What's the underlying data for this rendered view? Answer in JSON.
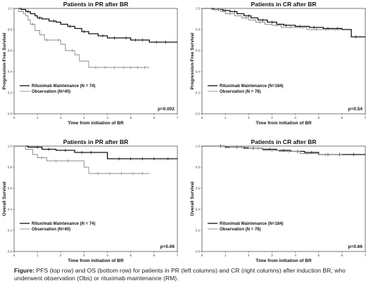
{
  "chart_data": [
    {
      "type": "line",
      "panel": "top-left",
      "title": "Patients in PR after BR",
      "xlabel": "Time from initiation of BR",
      "ylabel": "Progression-Free Survival",
      "xlim": [
        0,
        7
      ],
      "ylim": [
        0,
        1.0
      ],
      "xticks": [
        "0",
        "1",
        "2",
        "3",
        "4",
        "5",
        "6",
        "7"
      ],
      "yticks": [
        "0.0",
        "0.2",
        "0.4",
        "0.6",
        "0.8",
        "1.0"
      ],
      "grid": false,
      "legend_position": "bottom-left",
      "pvalue": "p=0.002",
      "series": [
        {
          "name": "Rituximab Maintenance (N = 74)",
          "color": "#111111",
          "steps": [
            [
              0,
              1.0
            ],
            [
              0.3,
              0.99
            ],
            [
              0.5,
              0.97
            ],
            [
              0.7,
              0.95
            ],
            [
              0.9,
              0.93
            ],
            [
              1.0,
              0.91
            ],
            [
              1.2,
              0.9
            ],
            [
              1.5,
              0.88
            ],
            [
              1.8,
              0.87
            ],
            [
              2.0,
              0.85
            ],
            [
              2.3,
              0.83
            ],
            [
              2.6,
              0.81
            ],
            [
              2.9,
              0.78
            ],
            [
              3.2,
              0.76
            ],
            [
              3.6,
              0.74
            ],
            [
              4.0,
              0.72
            ],
            [
              4.6,
              0.72
            ],
            [
              5.0,
              0.7
            ],
            [
              5.8,
              0.68
            ],
            [
              7.0,
              0.68
            ]
          ],
          "censor_x": [
            0.6,
            1.1,
            1.7,
            2.4,
            3.0,
            3.8,
            4.3,
            4.8,
            5.2,
            5.5,
            6.1,
            6.5
          ]
        },
        {
          "name": "Observation (N=40)",
          "color": "#888888",
          "steps": [
            [
              0,
              1.0
            ],
            [
              0.2,
              0.97
            ],
            [
              0.4,
              0.95
            ],
            [
              0.5,
              0.93
            ],
            [
              0.6,
              0.89
            ],
            [
              0.7,
              0.85
            ],
            [
              0.9,
              0.79
            ],
            [
              1.1,
              0.75
            ],
            [
              1.3,
              0.7
            ],
            [
              1.6,
              0.7
            ],
            [
              2.0,
              0.66
            ],
            [
              2.2,
              0.6
            ],
            [
              2.6,
              0.56
            ],
            [
              2.8,
              0.5
            ],
            [
              3.2,
              0.44
            ],
            [
              5.8,
              0.44
            ]
          ],
          "censor_x": [
            0.8,
            1.4,
            1.9,
            2.5,
            3.5,
            3.9,
            4.3,
            4.7,
            5.0,
            5.3,
            5.6
          ]
        }
      ]
    },
    {
      "type": "line",
      "panel": "top-right",
      "title": "Patients in CR after BR",
      "xlabel": "Time from initiation of BR",
      "ylabel": "Progression-Free Survival",
      "xlim": [
        0,
        7
      ],
      "ylim": [
        0,
        1.0
      ],
      "xticks": [
        "0",
        "1",
        "2",
        "3",
        "4",
        "5",
        "6",
        "7"
      ],
      "yticks": [
        "0.0",
        "0.2",
        "0.4",
        "0.6",
        "0.8",
        "1.0"
      ],
      "grid": false,
      "legend_position": "bottom-left",
      "pvalue": "p=0.54",
      "series": [
        {
          "name": "Rituximab Maintenance (N=184)",
          "color": "#111111",
          "steps": [
            [
              0,
              1.0
            ],
            [
              0.5,
              0.99
            ],
            [
              0.9,
              0.98
            ],
            [
              1.2,
              0.97
            ],
            [
              1.5,
              0.95
            ],
            [
              1.8,
              0.93
            ],
            [
              2.1,
              0.91
            ],
            [
              2.4,
              0.89
            ],
            [
              2.8,
              0.87
            ],
            [
              3.2,
              0.85
            ],
            [
              3.5,
              0.84
            ],
            [
              4.0,
              0.83
            ],
            [
              4.6,
              0.82
            ],
            [
              5.2,
              0.81
            ],
            [
              6.0,
              0.8
            ],
            [
              6.4,
              0.73
            ],
            [
              7.0,
              0.73
            ]
          ],
          "censor_x": [
            0.7,
            1.0,
            1.4,
            2.0,
            2.6,
            3.0,
            3.6,
            4.2,
            4.8,
            5.4,
            5.8,
            6.6
          ]
        },
        {
          "name": "Observation (N = 78)",
          "color": "#888888",
          "steps": [
            [
              0,
              1.0
            ],
            [
              0.4,
              0.99
            ],
            [
              0.8,
              0.97
            ],
            [
              1.0,
              0.95
            ],
            [
              1.4,
              0.93
            ],
            [
              1.7,
              0.91
            ],
            [
              2.0,
              0.89
            ],
            [
              2.3,
              0.87
            ],
            [
              2.7,
              0.85
            ],
            [
              3.0,
              0.84
            ],
            [
              3.4,
              0.82
            ],
            [
              4.0,
              0.82
            ],
            [
              4.5,
              0.8
            ],
            [
              6.0,
              0.8
            ]
          ],
          "censor_x": [
            0.6,
            1.2,
            1.9,
            2.5,
            3.2,
            3.8,
            4.3,
            4.9,
            5.3,
            5.7
          ]
        }
      ]
    },
    {
      "type": "line",
      "panel": "bottom-left",
      "title": "Patients in PR after BR",
      "xlabel": "Time from initiation of BR",
      "ylabel": "Overall Survival",
      "xlim": [
        0,
        7
      ],
      "ylim": [
        0,
        1.0
      ],
      "xticks": [
        "0",
        "1",
        "2",
        "3",
        "4",
        "5",
        "6",
        "7"
      ],
      "yticks": [
        "0.0",
        "0.2",
        "0.4",
        "0.6",
        "0.8",
        "1.0"
      ],
      "grid": false,
      "legend_position": "bottom-left",
      "pvalue": "p=0.06",
      "series": [
        {
          "name": "Rituximab Maintenance (N = 74)",
          "color": "#111111",
          "steps": [
            [
              0,
              1.0
            ],
            [
              0.6,
              0.99
            ],
            [
              1.2,
              0.97
            ],
            [
              1.8,
              0.96
            ],
            [
              2.6,
              0.94
            ],
            [
              3.8,
              0.94
            ],
            [
              4.0,
              0.88
            ],
            [
              7.0,
              0.88
            ]
          ],
          "censor_x": [
            1.0,
            1.5,
            2.2,
            2.9,
            3.3,
            4.5,
            5.0,
            5.5,
            6.0,
            6.6
          ]
        },
        {
          "name": "Observation (N=40)",
          "color": "#888888",
          "steps": [
            [
              0,
              1.0
            ],
            [
              0.5,
              0.97
            ],
            [
              0.8,
              0.92
            ],
            [
              1.0,
              0.89
            ],
            [
              1.4,
              0.86
            ],
            [
              2.8,
              0.86
            ],
            [
              3.0,
              0.8
            ],
            [
              3.2,
              0.74
            ],
            [
              5.8,
              0.74
            ]
          ],
          "censor_x": [
            1.2,
            1.8,
            2.3,
            3.6,
            4.1,
            4.6,
            5.1,
            5.5
          ]
        }
      ]
    },
    {
      "type": "line",
      "panel": "bottom-right",
      "title": "Patients in CR after BR",
      "xlabel": "Time from initiation of BR",
      "ylabel": "Overall Survival",
      "xlim": [
        0,
        7
      ],
      "ylim": [
        0,
        1.0
      ],
      "xticks": [
        "0",
        "1",
        "2",
        "3",
        "4",
        "5",
        "6",
        "7"
      ],
      "yticks": [
        "0.0",
        "0.2",
        "0.4",
        "0.6",
        "0.8",
        "1.0"
      ],
      "grid": false,
      "legend_position": "bottom-left",
      "pvalue": "p=0.66",
      "series": [
        {
          "name": "Rituximab Maintenance (N=184)",
          "color": "#111111",
          "steps": [
            [
              0,
              1.0
            ],
            [
              1.0,
              0.99
            ],
            [
              1.8,
              0.98
            ],
            [
              2.6,
              0.97
            ],
            [
              3.2,
              0.96
            ],
            [
              3.8,
              0.95
            ],
            [
              4.4,
              0.94
            ],
            [
              5.0,
              0.92
            ],
            [
              7.0,
              0.92
            ]
          ],
          "censor_x": [
            0.8,
            1.5,
            2.2,
            2.9,
            3.5,
            4.1,
            4.7,
            5.4,
            5.9,
            6.5
          ]
        },
        {
          "name": "Observation (N = 78)",
          "color": "#888888",
          "steps": [
            [
              0,
              1.0
            ],
            [
              1.2,
              0.99
            ],
            [
              2.0,
              0.98
            ],
            [
              2.6,
              0.96
            ],
            [
              3.3,
              0.95
            ],
            [
              4.2,
              0.93
            ],
            [
              5.0,
              0.92
            ],
            [
              6.0,
              0.92
            ]
          ],
          "censor_x": [
            0.9,
            1.7,
            2.4,
            3.0,
            3.7,
            4.5,
            5.3
          ]
        }
      ]
    }
  ],
  "caption": {
    "label": "Figure:",
    "text": " PFS (top row) and OS (bottom row) for patients in PR (left columns) and CR (right columns) after induction BR, who underwent observation (Obs) or rituximab maintenance (RM)."
  }
}
